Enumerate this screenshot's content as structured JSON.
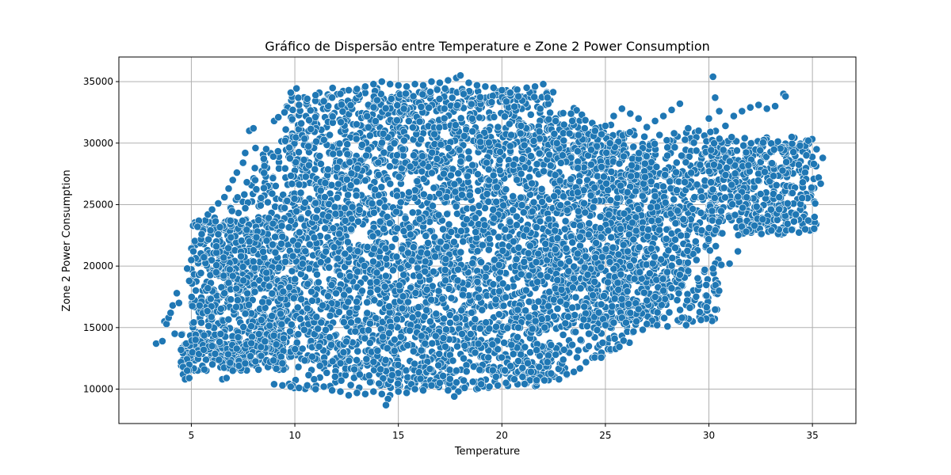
{
  "chart_data": {
    "type": "scatter",
    "title": "Gráfico de Dispersão entre Temperature e Zone 2 Power Consumption",
    "xlabel": "Temperature",
    "ylabel": "Zone 2  Power Consumption",
    "xlim": [
      1.5,
      37.1
    ],
    "ylim": [
      7200,
      37000
    ],
    "xticks": [
      5,
      10,
      15,
      20,
      25,
      30,
      35
    ],
    "yticks": [
      10000,
      15000,
      20000,
      25000,
      30000,
      35000
    ],
    "xtick_labels": [
      "5",
      "10",
      "15",
      "20",
      "25",
      "30",
      "35"
    ],
    "ytick_labels": [
      "10000",
      "15000",
      "20000",
      "25000",
      "30000",
      "35000"
    ],
    "grid": true,
    "point_color": "#1f77b4",
    "series": [
      {
        "points": [
          [
            3.3,
            13700
          ],
          [
            3.6,
            13900
          ],
          [
            3.7,
            15500
          ],
          [
            3.8,
            15300
          ],
          [
            3.9,
            15800
          ],
          [
            4.0,
            16200
          ],
          [
            4.1,
            16800
          ],
          [
            4.2,
            14500
          ],
          [
            4.3,
            17800
          ],
          [
            4.4,
            17000
          ],
          [
            4.5,
            13200
          ],
          [
            4.5,
            12200
          ],
          [
            4.6,
            11200
          ],
          [
            4.6,
            11800
          ],
          [
            4.7,
            10800
          ],
          [
            4.8,
            11500
          ],
          [
            4.9,
            10900
          ],
          [
            4.8,
            19800
          ],
          [
            4.9,
            18800
          ],
          [
            5.0,
            20500
          ],
          [
            5.1,
            21200
          ],
          [
            5.3,
            23200
          ],
          [
            5.5,
            22600
          ],
          [
            5.8,
            24200
          ],
          [
            6.0,
            24600
          ],
          [
            6.3,
            25100
          ],
          [
            6.6,
            25600
          ],
          [
            6.8,
            26300
          ],
          [
            7.0,
            27000
          ],
          [
            7.2,
            27600
          ],
          [
            7.5,
            28400
          ],
          [
            7.6,
            29200
          ],
          [
            7.8,
            31000
          ],
          [
            8.0,
            31200
          ],
          [
            8.1,
            29600
          ],
          [
            6.5,
            10800
          ],
          [
            6.7,
            10900
          ],
          [
            7.0,
            11500
          ],
          [
            7.3,
            11900
          ],
          [
            7.6,
            12100
          ],
          [
            9.0,
            31800
          ],
          [
            9.2,
            32100
          ],
          [
            9.5,
            32500
          ],
          [
            9.9,
            32700
          ],
          [
            10.2,
            33100
          ],
          [
            10.6,
            33600
          ],
          [
            11.0,
            33900
          ],
          [
            11.4,
            33400
          ],
          [
            11.8,
            33700
          ],
          [
            12.2,
            34000
          ],
          [
            12.6,
            34300
          ],
          [
            13.0,
            34400
          ],
          [
            13.4,
            34600
          ],
          [
            13.8,
            34800
          ],
          [
            14.2,
            35000
          ],
          [
            14.6,
            34800
          ],
          [
            15.0,
            34700
          ],
          [
            15.4,
            34600
          ],
          [
            15.8,
            34800
          ],
          [
            16.2,
            34700
          ],
          [
            16.6,
            35000
          ],
          [
            17.0,
            34900
          ],
          [
            17.4,
            35100
          ],
          [
            17.8,
            35300
          ],
          [
            18.0,
            35500
          ],
          [
            18.4,
            34900
          ],
          [
            18.8,
            34700
          ],
          [
            19.2,
            34600
          ],
          [
            19.6,
            34500
          ],
          [
            20.0,
            34300
          ],
          [
            20.4,
            34100
          ],
          [
            20.8,
            33800
          ],
          [
            21.2,
            34500
          ],
          [
            21.6,
            34600
          ],
          [
            22.0,
            34800
          ],
          [
            22.2,
            33700
          ],
          [
            22.6,
            31800
          ],
          [
            23.0,
            31500
          ],
          [
            23.4,
            31800
          ],
          [
            24.0,
            31200
          ],
          [
            24.5,
            31000
          ],
          [
            25.0,
            31400
          ],
          [
            25.4,
            32200
          ],
          [
            25.8,
            32800
          ],
          [
            26.2,
            32400
          ],
          [
            26.6,
            32000
          ],
          [
            27.0,
            31300
          ],
          [
            27.4,
            31800
          ],
          [
            27.8,
            32200
          ],
          [
            28.2,
            32700
          ],
          [
            28.6,
            33200
          ],
          [
            29.0,
            31200
          ],
          [
            29.5,
            31000
          ],
          [
            30.0,
            32000
          ],
          [
            30.2,
            35400
          ],
          [
            30.3,
            33700
          ],
          [
            30.5,
            32600
          ],
          [
            30.8,
            31400
          ],
          [
            31.2,
            32200
          ],
          [
            31.6,
            32600
          ],
          [
            32.0,
            32900
          ],
          [
            32.4,
            33100
          ],
          [
            32.8,
            32800
          ],
          [
            33.2,
            33000
          ],
          [
            33.6,
            34000
          ],
          [
            33.7,
            33800
          ],
          [
            34.0,
            30500
          ],
          [
            34.4,
            29800
          ],
          [
            34.8,
            30200
          ],
          [
            35.2,
            29500
          ],
          [
            35.5,
            28800
          ],
          [
            35.3,
            27200
          ],
          [
            35.4,
            26700
          ],
          [
            35.1,
            24000
          ],
          [
            34.8,
            23700
          ],
          [
            34.2,
            24200
          ],
          [
            33.8,
            25100
          ],
          [
            33.4,
            25600
          ],
          [
            33.0,
            24600
          ],
          [
            32.6,
            23800
          ],
          [
            32.2,
            23300
          ],
          [
            31.8,
            22800
          ],
          [
            31.4,
            21200
          ],
          [
            31.0,
            20200
          ],
          [
            30.6,
            20100
          ],
          [
            30.2,
            19800
          ],
          [
            29.8,
            19700
          ],
          [
            29.4,
            20500
          ],
          [
            29.0,
            19600
          ],
          [
            28.6,
            19300
          ],
          [
            28.2,
            18200
          ],
          [
            27.8,
            18000
          ],
          [
            27.4,
            17500
          ],
          [
            27.0,
            17200
          ],
          [
            26.6,
            16500
          ],
          [
            26.2,
            16200
          ],
          [
            25.8,
            15800
          ],
          [
            25.4,
            15400
          ],
          [
            25.0,
            15200
          ],
          [
            24.6,
            14800
          ],
          [
            24.2,
            14500
          ],
          [
            23.8,
            14000
          ],
          [
            23.4,
            13600
          ],
          [
            23.0,
            13200
          ],
          [
            22.6,
            12800
          ],
          [
            22.2,
            12200
          ],
          [
            21.8,
            11800
          ],
          [
            21.4,
            11400
          ],
          [
            21.0,
            11000
          ],
          [
            20.6,
            10800
          ],
          [
            20.2,
            10500
          ],
          [
            19.8,
            10300
          ],
          [
            19.4,
            10200
          ],
          [
            19.0,
            10400
          ],
          [
            18.6,
            10600
          ],
          [
            18.2,
            10100
          ],
          [
            17.9,
            9800
          ],
          [
            17.7,
            9400
          ],
          [
            17.4,
            9900
          ],
          [
            17.0,
            10500
          ],
          [
            16.6,
            10300
          ],
          [
            16.2,
            9900
          ],
          [
            15.8,
            10000
          ],
          [
            15.4,
            9700
          ],
          [
            15.0,
            9800
          ],
          [
            14.6,
            9500
          ],
          [
            14.5,
            9200
          ],
          [
            14.4,
            8700
          ],
          [
            14.2,
            9600
          ],
          [
            13.8,
            9800
          ],
          [
            13.4,
            9600
          ],
          [
            13.0,
            9700
          ],
          [
            12.6,
            9500
          ],
          [
            12.2,
            9800
          ],
          [
            11.8,
            9900
          ],
          [
            11.4,
            10200
          ],
          [
            11.0,
            10000
          ],
          [
            10.6,
            10300
          ],
          [
            10.2,
            10100
          ],
          [
            9.8,
            10200
          ],
          [
            9.4,
            10300
          ],
          [
            9.0,
            10400
          ],
          [
            26.0,
            15400
          ],
          [
            26.5,
            15500
          ],
          [
            27.0,
            15300
          ],
          [
            27.5,
            15200
          ],
          [
            28.0,
            15100
          ],
          [
            28.5,
            15600
          ],
          [
            28.9,
            15200
          ],
          [
            28.7,
            15800
          ],
          [
            5.2,
            14000
          ],
          [
            5.6,
            13200
          ],
          [
            6.0,
            13500
          ],
          [
            5.4,
            16800
          ],
          [
            5.8,
            18200
          ],
          [
            6.2,
            19500
          ],
          [
            6.6,
            17800
          ],
          [
            7.0,
            19200
          ],
          [
            7.4,
            20800
          ],
          [
            7.8,
            22000
          ]
        ]
      }
    ],
    "regions": [
      {
        "count": 2600,
        "kind": "ring",
        "cx": 17.8,
        "cy": 22000,
        "rx": 11.5,
        "ry": 12500
      },
      {
        "count": 1500,
        "kind": "box",
        "x": [
          9.5,
          22.5
        ],
        "y": [
          10000,
          34500
        ]
      },
      {
        "count": 900,
        "kind": "box",
        "x": [
          22.5,
          30.5
        ],
        "y": [
          15500,
          31000
        ]
      },
      {
        "count": 500,
        "kind": "box",
        "x": [
          5.0,
          9.5
        ],
        "y": [
          13000,
          24000
        ]
      },
      {
        "count": 450,
        "kind": "box",
        "x": [
          30.0,
          35.2
        ],
        "y": [
          22500,
          30500
        ]
      },
      {
        "count": 250,
        "kind": "box",
        "x": [
          4.5,
          9.5
        ],
        "y": [
          11500,
          14500
        ]
      }
    ]
  }
}
